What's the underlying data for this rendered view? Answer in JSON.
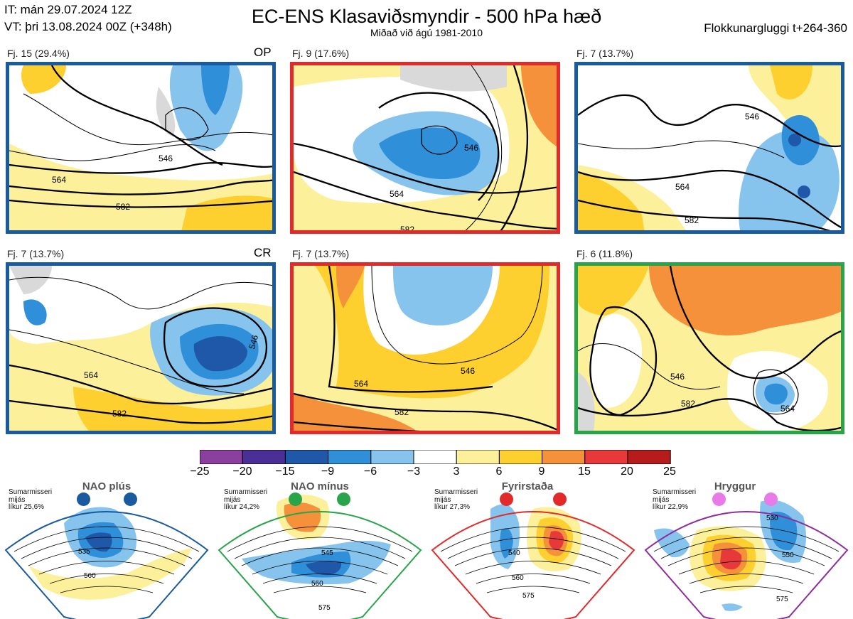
{
  "header": {
    "initial_time": "IT: mán 29.07.2024 12Z",
    "valid_time": "VT: þri 13.08.2024 00Z  (+348h)",
    "title": "EC-ENS Klasaviðsmyndir - 500 hPa hæð",
    "subtitle": "Miðað við ágú 1981-2010",
    "window": "Flokkunargluggi t+264-360"
  },
  "panels": [
    {
      "label": "Fj. 15 (29.4%)",
      "tag": "OP",
      "border_color": "#1a5a9e",
      "contours": [
        "546",
        "564",
        "582"
      ]
    },
    {
      "label": "Fj. 9 (17.6%)",
      "tag": "",
      "border_color": "#e32a2a",
      "contours": [
        "546",
        "564",
        "582"
      ]
    },
    {
      "label": "Fj. 7 (13.7%)",
      "tag": "",
      "border_color": "#1a5a9e",
      "contours": [
        "546",
        "564",
        "582"
      ]
    },
    {
      "label": "Fj. 7 (13.7%)",
      "tag": "CR",
      "border_color": "#1a5a9e",
      "contours": [
        "546",
        "564",
        "582"
      ]
    },
    {
      "label": "Fj. 7 (13.7%)",
      "tag": "",
      "border_color": "#e32a2a",
      "contours": [
        "546",
        "564",
        "582"
      ]
    },
    {
      "label": "Fj. 6 (11.8%)",
      "tag": "",
      "border_color": "#2aa44a",
      "contours": [
        "546",
        "564",
        "582"
      ]
    }
  ],
  "colorbar": {
    "ticks": [
      "−25",
      "−20",
      "−15",
      "−9",
      "−6",
      "−3",
      "3",
      "6",
      "9",
      "15",
      "20",
      "25"
    ],
    "colors": [
      "#8b3f9e",
      "#4a2f96",
      "#1f58a8",
      "#2f8fd8",
      "#86c4ee",
      "#ffffff",
      "#fdf09a",
      "#fdd030",
      "#f5913a",
      "#e8393a",
      "#b71c1c"
    ]
  },
  "regimes": [
    {
      "name": "NAO plús",
      "info": [
        "Sumarmisseri",
        "mijás",
        "líkur 25,6%"
      ],
      "color": "#1a5a9e",
      "contours": [
        "535",
        "560"
      ]
    },
    {
      "name": "NAO mínus",
      "info": [
        "Sumarmisseri",
        "mijás",
        "líkur 24,2%"
      ],
      "color": "#2aa44a",
      "contours": [
        "545",
        "560",
        "575"
      ]
    },
    {
      "name": "Fyrirstaða",
      "info": [
        "Sumarmisseri",
        "mijás",
        "líkur 27,3%"
      ],
      "color": "#e32a2a",
      "contours": [
        "540",
        "560",
        "575"
      ]
    },
    {
      "name": "Hryggur",
      "info": [
        "Sumarmisseri",
        "mijás",
        "líkur 22,9%"
      ],
      "color": "#e87be8",
      "contours": [
        "530",
        "550",
        "575"
      ]
    }
  ]
}
